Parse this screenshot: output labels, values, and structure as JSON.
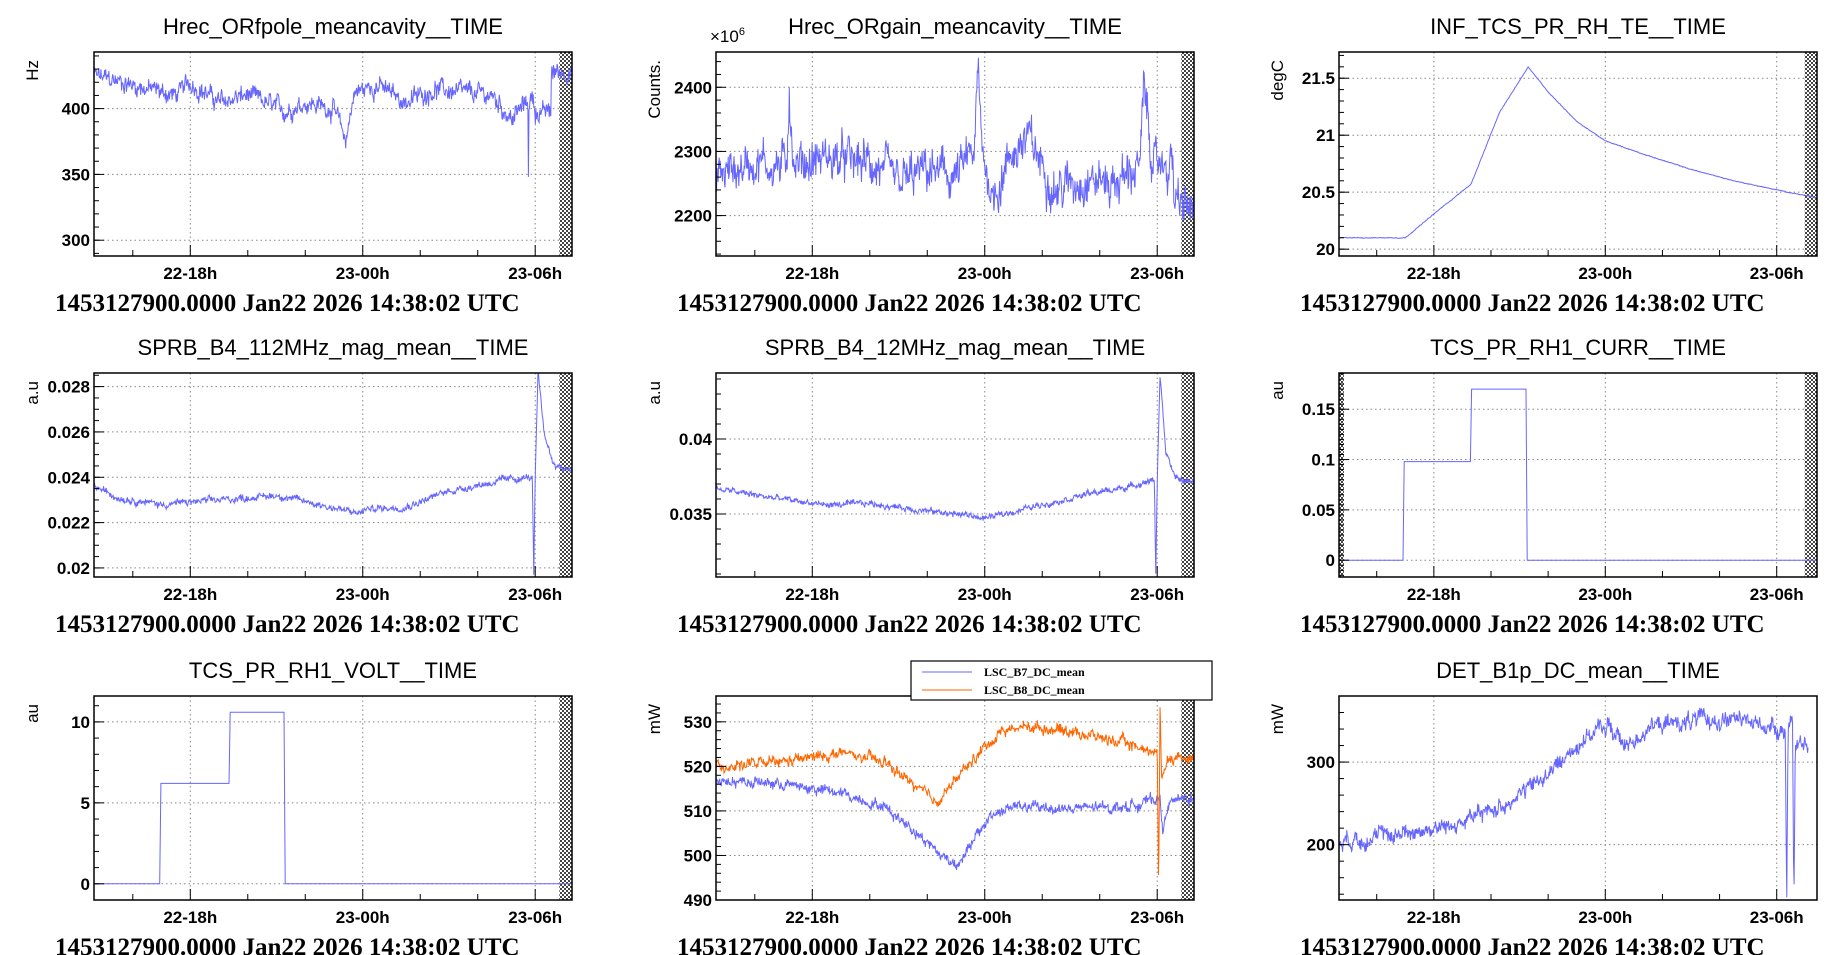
{
  "footer": "1453127900.0000 Jan22 2026 14:38:02 UTC",
  "x_axis": {
    "unit": "hours since 22-00h",
    "ticks": [
      18,
      24,
      30
    ],
    "tick_labels": [
      "22-18h",
      "23-00h",
      "23-06h"
    ],
    "minor_ticks": [
      16,
      20,
      22,
      26,
      28
    ]
  },
  "colors": {
    "blue": "#6666ff",
    "orange": "#ff6600",
    "grid": "#888888"
  },
  "chart_data": [
    {
      "type": "line",
      "title": "Hrec_ORfpole_meancavity__TIME",
      "ylabel": "Hz",
      "xlim": [
        14.65,
        31.28
      ],
      "ylim": [
        288,
        443
      ],
      "yticks": [
        300,
        350,
        400
      ],
      "ytick_labels": [
        "300",
        "350",
        "400"
      ],
      "yminor": 10,
      "hatch": [
        [
          30.84,
          31.28
        ]
      ],
      "series": [
        {
          "name": "Hrec_ORfpole_meancavity",
          "color": "#6666ff",
          "noise": 7,
          "points": [
            [
              14.65,
              425
            ],
            [
              16,
              418
            ],
            [
              17.5,
              410
            ],
            [
              18,
              420
            ],
            [
              19,
              405
            ],
            [
              20,
              410
            ],
            [
              21.3,
              398
            ],
            [
              22,
              405
            ],
            [
              23,
              400
            ],
            [
              23.4,
              375
            ],
            [
              23.7,
              412
            ],
            [
              24.5,
              418
            ],
            [
              25.5,
              405
            ],
            [
              26.5,
              415
            ],
            [
              27.5,
              412
            ],
            [
              28.5,
              410
            ],
            [
              29.2,
              392
            ],
            [
              29.7,
              405
            ],
            [
              29.75,
              405
            ],
            [
              29.76,
              300
            ],
            [
              29.77,
              405
            ],
            [
              29.95,
              408
            ],
            [
              30.0,
              397
            ],
            [
              30.55,
              397
            ],
            [
              30.56,
              428
            ],
            [
              31.28,
              428
            ]
          ]
        }
      ]
    },
    {
      "type": "line",
      "title": "Hrec_ORgain_meancavity__TIME",
      "ylabel": "Counts.",
      "yscale_label": "×10",
      "yscale_exp": "6",
      "xlim": [
        14.65,
        31.28
      ],
      "ylim": [
        2137,
        2455
      ],
      "yticks": [
        2200,
        2300,
        2400
      ],
      "ytick_labels": [
        "2200",
        "2300",
        "2400"
      ],
      "yminor": 20,
      "hatch": [
        [
          30.84,
          31.28
        ]
      ],
      "series": [
        {
          "name": "Hrec_ORgain_meancavity",
          "color": "#6666ff",
          "noise": 32,
          "points": [
            [
              14.65,
              2260
            ],
            [
              16,
              2285
            ],
            [
              17.1,
              2275
            ],
            [
              17.2,
              2400
            ],
            [
              17.35,
              2280
            ],
            [
              18.5,
              2290
            ],
            [
              20,
              2280
            ],
            [
              21,
              2250
            ],
            [
              22,
              2270
            ],
            [
              23,
              2260
            ],
            [
              23.65,
              2300
            ],
            [
              23.75,
              2430
            ],
            [
              23.9,
              2300
            ],
            [
              24.3,
              2230
            ],
            [
              25,
              2300
            ],
            [
              25.5,
              2320
            ],
            [
              26.5,
              2240
            ],
            [
              27.5,
              2260
            ],
            [
              28.5,
              2250
            ],
            [
              29.4,
              2280
            ],
            [
              29.55,
              2400
            ],
            [
              29.8,
              2300
            ],
            [
              30.0,
              2260
            ],
            [
              30.01,
              2280
            ],
            [
              30.55,
              2280
            ],
            [
              30.6,
              2220
            ],
            [
              31.28,
              2210
            ]
          ]
        }
      ]
    },
    {
      "type": "line",
      "title": "INF_TCS_PR_RH_TE__TIME",
      "ylabel": "degC",
      "xlim": [
        14.68,
        31.41
      ],
      "ylim": [
        19.94,
        21.73
      ],
      "yticks": [
        20,
        20.5,
        21,
        21.5
      ],
      "ytick_labels": [
        "20",
        "20.5",
        "21",
        "21.5"
      ],
      "yminor": 0.1,
      "hatch": [
        [
          30.98,
          31.41
        ]
      ],
      "series": [
        {
          "name": "INF_TCS_PR_RH_TE",
          "color": "#6666ff",
          "noise": 0.003,
          "points": [
            [
              14.68,
              20.1
            ],
            [
              17.0,
              20.1
            ],
            [
              18.2,
              20.35
            ],
            [
              19.3,
              20.57
            ],
            [
              20.3,
              21.2
            ],
            [
              21.3,
              21.6
            ],
            [
              22.0,
              21.38
            ],
            [
              23.0,
              21.12
            ],
            [
              24.0,
              20.95
            ],
            [
              25.5,
              20.82
            ],
            [
              27,
              20.7
            ],
            [
              28.5,
              20.6
            ],
            [
              30,
              20.52
            ],
            [
              31.41,
              20.45
            ]
          ]
        }
      ]
    },
    {
      "type": "line",
      "title": "SPRB_B4_112MHz_mag_mean__TIME",
      "ylabel": "a.u",
      "xlim": [
        14.65,
        31.28
      ],
      "ylim": [
        0.0196,
        0.0286
      ],
      "yticks": [
        0.02,
        0.022,
        0.024,
        0.026,
        0.028
      ],
      "ytick_labels": [
        "0.02",
        "0.022",
        "0.024",
        "0.026",
        "0.028"
      ],
      "yminor": 0.0005,
      "hatch": [
        [
          30.84,
          31.28
        ]
      ],
      "series": [
        {
          "name": "SPRB_B4_112MHz_mag_mean",
          "color": "#6666ff",
          "noise": 0.00015,
          "points": [
            [
              14.65,
              0.0236
            ],
            [
              15.5,
              0.0231
            ],
            [
              17,
              0.0228
            ],
            [
              19,
              0.023
            ],
            [
              21,
              0.0232
            ],
            [
              22.5,
              0.0228
            ],
            [
              23.8,
              0.0224
            ],
            [
              24.2,
              0.0226
            ],
            [
              25.5,
              0.0227
            ],
            [
              27,
              0.0234
            ],
            [
              29,
              0.0239
            ],
            [
              29.9,
              0.024
            ],
            [
              29.95,
              0.0197
            ],
            [
              30.0,
              0.024
            ],
            [
              30.1,
              0.0286
            ],
            [
              30.3,
              0.026
            ],
            [
              30.6,
              0.0247
            ],
            [
              30.9,
              0.0244
            ],
            [
              31.28,
              0.0244
            ]
          ]
        }
      ]
    },
    {
      "type": "line",
      "title": "SPRB_B4_12MHz_mag_mean__TIME",
      "ylabel": "a.u",
      "xlim": [
        14.65,
        31.28
      ],
      "ylim": [
        0.0308,
        0.0444
      ],
      "yticks": [
        0.035,
        0.04
      ],
      "ytick_labels": [
        "0.035",
        "0.04"
      ],
      "yminor": 0.001,
      "hatch": [
        [
          30.84,
          31.28
        ]
      ],
      "series": [
        {
          "name": "SPRB_B4_12MHz_mag_mean",
          "color": "#6666ff",
          "noise": 0.0002,
          "points": [
            [
              14.65,
              0.0367
            ],
            [
              16.5,
              0.0361
            ],
            [
              18.5,
              0.0356
            ],
            [
              20,
              0.0357
            ],
            [
              22,
              0.0352
            ],
            [
              23.5,
              0.0349
            ],
            [
              24,
              0.0347
            ],
            [
              25.5,
              0.0354
            ],
            [
              27.5,
              0.0363
            ],
            [
              29,
              0.0368
            ],
            [
              29.9,
              0.0373
            ],
            [
              29.95,
              0.031
            ],
            [
              30.0,
              0.0372
            ],
            [
              30.1,
              0.0444
            ],
            [
              30.3,
              0.039
            ],
            [
              30.6,
              0.0375
            ],
            [
              30.9,
              0.0372
            ],
            [
              31.28,
              0.0372
            ]
          ]
        }
      ]
    },
    {
      "type": "line",
      "title": "TCS_PR_RH1_CURR__TIME",
      "ylabel": "au",
      "xlim": [
        14.68,
        31.41
      ],
      "ylim": [
        -0.0167,
        0.186
      ],
      "yticks": [
        0,
        0.05,
        0.1,
        0.15
      ],
      "ytick_labels": [
        "0",
        "0.05",
        "0.1",
        "0.15"
      ],
      "yminor": 0.005,
      "hatch": [
        [
          14.68,
          14.85
        ],
        [
          30.98,
          31.41
        ]
      ],
      "series": [
        {
          "name": "TCS_PR_RH1_CURR",
          "color": "#6666ff",
          "noise": 0,
          "step": true,
          "points": [
            [
              14.85,
              0
            ],
            [
              16.94,
              0.098
            ],
            [
              19.31,
              0.17
            ],
            [
              21.24,
              0
            ],
            [
              31.41,
              0
            ]
          ]
        }
      ]
    },
    {
      "type": "line",
      "title": "TCS_PR_RH1_VOLT__TIME",
      "ylabel": "au",
      "xlim": [
        14.65,
        31.28
      ],
      "ylim": [
        -1.0,
        11.6
      ],
      "yticks": [
        0,
        5,
        10
      ],
      "ytick_labels": [
        "0",
        "5",
        "10"
      ],
      "yminor": 1,
      "hatch": [
        [
          30.84,
          31.28
        ]
      ],
      "series": [
        {
          "name": "TCS_PR_RH1_VOLT",
          "color": "#6666ff",
          "noise": 0,
          "step": true,
          "points": [
            [
              14.65,
              0
            ],
            [
              16.96,
              6.2
            ],
            [
              19.36,
              10.6
            ],
            [
              21.3,
              0
            ],
            [
              31.28,
              0
            ]
          ]
        }
      ]
    },
    {
      "type": "line",
      "title": "",
      "ylabel": "mW",
      "xlim": [
        14.65,
        31.28
      ],
      "ylim": [
        490,
        535.8
      ],
      "yticks": [
        490,
        500,
        510,
        520,
        530
      ],
      "ytick_labels": [
        "490",
        "500",
        "510",
        "520",
        "530"
      ],
      "yminor": 2,
      "hatch": [
        [
          30.84,
          31.28
        ]
      ],
      "legend": {
        "placement": "top-right",
        "entries": [
          "LSC_B7_DC_mean",
          "LSC_B8_DC_mean"
        ]
      },
      "series": [
        {
          "name": "LSC_B7_DC_mean",
          "color": "#6666ff",
          "noise": 1.2,
          "points": [
            [
              14.65,
              517
            ],
            [
              17,
              516
            ],
            [
              19,
              514
            ],
            [
              20.5,
              511
            ],
            [
              21.5,
              506
            ],
            [
              22.5,
              500
            ],
            [
              23,
              498
            ],
            [
              23.5,
              502
            ],
            [
              24.2,
              509
            ],
            [
              25,
              511
            ],
            [
              27,
              510.5
            ],
            [
              29,
              511
            ],
            [
              30.1,
              513
            ],
            [
              30.2,
              505
            ],
            [
              30.4,
              512
            ],
            [
              31.28,
              513
            ]
          ]
        },
        {
          "name": "LSC_B8_DC_mean",
          "color": "#ff6600",
          "noise": 1.2,
          "points": [
            [
              14.65,
              520
            ],
            [
              17,
              521
            ],
            [
              19,
              523
            ],
            [
              20.5,
              521
            ],
            [
              21.5,
              516
            ],
            [
              22.3,
              512
            ],
            [
              23,
              517
            ],
            [
              23.8,
              523
            ],
            [
              24.6,
              528
            ],
            [
              25.5,
              529
            ],
            [
              27,
              528
            ],
            [
              29,
              525
            ],
            [
              30,
              523
            ],
            [
              30.05,
              490
            ],
            [
              30.1,
              536
            ],
            [
              30.15,
              518
            ],
            [
              30.4,
              522
            ],
            [
              31.28,
              522
            ]
          ]
        }
      ]
    },
    {
      "type": "line",
      "title": "DET_B1p_DC_mean__TIME",
      "ylabel": "mW",
      "xlim": [
        14.68,
        31.41
      ],
      "ylim": [
        133,
        380
      ],
      "yticks": [
        200,
        300
      ],
      "ytick_labels": [
        "200",
        "300"
      ],
      "yminor": 20,
      "hatch": [],
      "series": [
        {
          "name": "DET_B1p_DC_mean",
          "color": "#6666ff",
          "noise": 10,
          "points": [
            [
              14.68,
              205
            ],
            [
              16.5,
              212
            ],
            [
              18.5,
              222
            ],
            [
              20.3,
              245
            ],
            [
              22,
              285
            ],
            [
              23.3,
              330
            ],
            [
              24.1,
              345
            ],
            [
              24.7,
              318
            ],
            [
              25.5,
              342
            ],
            [
              27,
              350
            ],
            [
              28.5,
              352
            ],
            [
              29.6,
              345
            ],
            [
              30.3,
              338
            ],
            [
              30.35,
              135
            ],
            [
              30.4,
              340
            ],
            [
              30.55,
              360
            ],
            [
              30.6,
              135
            ],
            [
              30.65,
              320
            ],
            [
              31.1,
              318
            ]
          ]
        }
      ]
    }
  ]
}
